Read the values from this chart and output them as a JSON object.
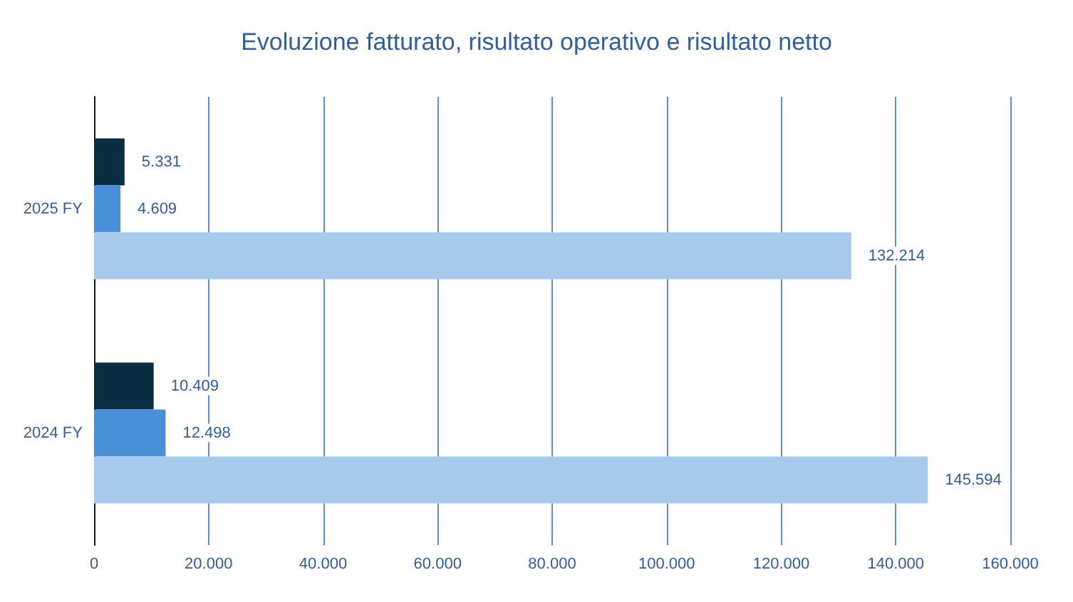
{
  "chart_data": {
    "type": "bar",
    "orientation": "horizontal",
    "title": "Evoluzione fatturato, risultato operativo e risultato netto",
    "categories": [
      "2025 FY",
      "2024 FY"
    ],
    "series": [
      {
        "color": "#0b2d42",
        "values": [
          5331,
          10409
        ],
        "value_labels": [
          "5.331",
          "10.409"
        ]
      },
      {
        "color": "#4a90d9",
        "values": [
          4609,
          12498
        ],
        "value_labels": [
          "4.609",
          "12.498"
        ]
      },
      {
        "color": "#a6caec",
        "values": [
          132214,
          145594
        ],
        "value_labels": [
          "132.214",
          "145.594"
        ]
      }
    ],
    "xlim": [
      0,
      160000
    ],
    "xticks": [
      0,
      {
        "value": 20000,
        "label": "20.000"
      },
      {
        "value": 40000,
        "label": "40.000"
      },
      {
        "value": 60000,
        "label": "60.000"
      },
      {
        "value": 80000,
        "label": "80.000"
      },
      {
        "value": 100000,
        "label": "100.000"
      },
      {
        "value": 120000,
        "label": "120.000"
      },
      {
        "value": 140000,
        "label": "140.000"
      },
      {
        "value": 160000,
        "label": "160.000"
      }
    ],
    "grid": "x"
  }
}
